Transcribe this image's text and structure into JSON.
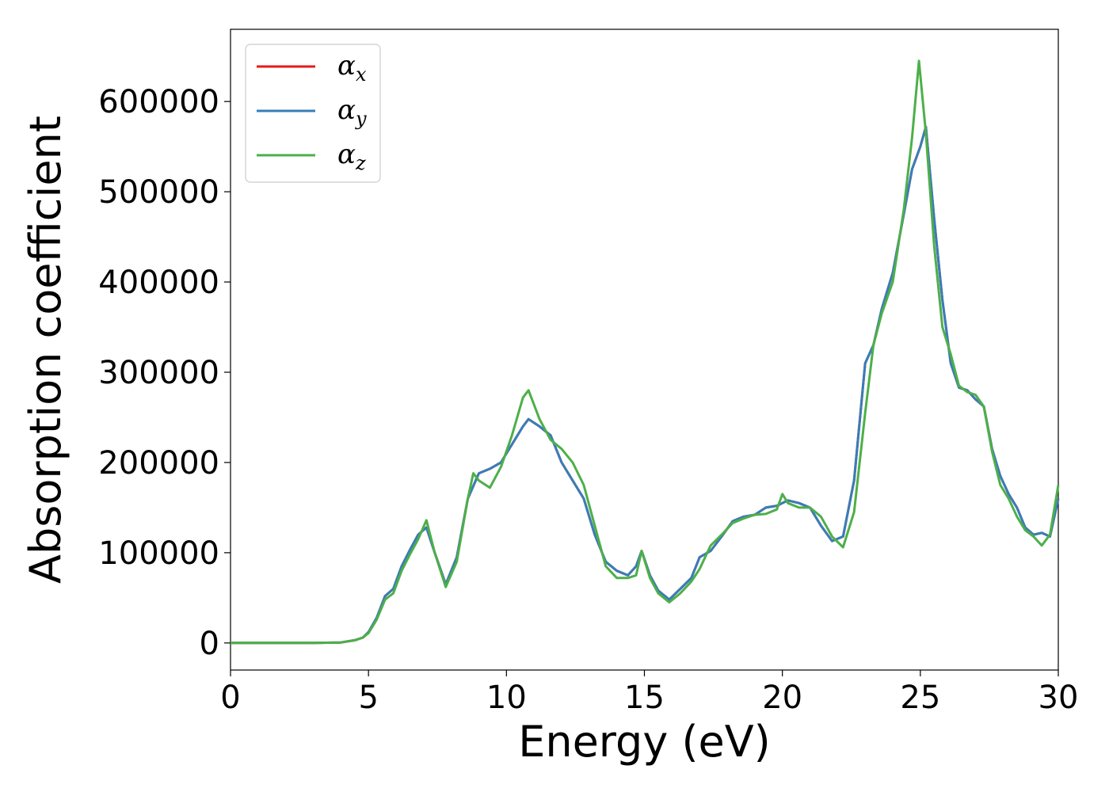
{
  "chart_data": {
    "type": "line",
    "title": "",
    "xlabel": "Energy (eV)",
    "ylabel": "Absorption coefficient",
    "xlim": [
      0,
      30
    ],
    "ylim": [
      -30000,
      680000
    ],
    "xticks": [
      0,
      5,
      10,
      15,
      20,
      25,
      30
    ],
    "yticks": [
      0,
      100000,
      200000,
      300000,
      400000,
      500000,
      600000
    ],
    "xtick_labels": [
      "0",
      "5",
      "10",
      "15",
      "20",
      "25",
      "30"
    ],
    "ytick_labels": [
      "0",
      "100000",
      "200000",
      "300000",
      "400000",
      "500000",
      "600000"
    ],
    "grid": false,
    "legend": "top-left",
    "series": [
      {
        "name": "αx",
        "legend_base": "α",
        "legend_sub": "x",
        "color": "#e41a1c",
        "x": [
          0,
          3,
          4,
          4.5,
          4.8,
          5,
          5.3,
          5.6,
          5.9,
          6.2,
          6.5,
          6.8,
          7.1,
          7.4,
          7.8,
          8.2,
          8.6,
          9.0,
          9.4,
          9.8,
          10.2,
          10.6,
          10.8,
          11.2,
          11.6,
          12.0,
          12.4,
          12.8,
          13.2,
          13.6,
          14.0,
          14.4,
          14.7,
          14.9,
          15.2,
          15.5,
          15.9,
          16.3,
          16.7,
          17.0,
          17.4,
          17.8,
          18.2,
          18.6,
          19.0,
          19.4,
          19.8,
          20.2,
          20.6,
          21.0,
          21.4,
          21.8,
          22.2,
          22.6,
          23.0,
          23.3,
          23.6,
          24.0,
          24.4,
          24.7,
          25.0,
          25.2,
          25.5,
          25.8,
          26.1,
          26.4,
          26.7,
          27.0,
          27.3,
          27.6,
          27.9,
          28.2,
          28.5,
          28.8,
          29.1,
          29.4,
          29.7,
          30.0
        ],
        "values": [
          0,
          0,
          500,
          3000,
          6000,
          12000,
          28000,
          52000,
          60000,
          85000,
          103000,
          120000,
          128000,
          100000,
          65000,
          95000,
          160000,
          188000,
          193000,
          200000,
          220000,
          240000,
          248000,
          240000,
          230000,
          200000,
          180000,
          160000,
          120000,
          90000,
          80000,
          75000,
          85000,
          102000,
          75000,
          58000,
          48000,
          60000,
          72000,
          95000,
          102000,
          118000,
          135000,
          140000,
          142000,
          150000,
          152000,
          158000,
          155000,
          150000,
          130000,
          113000,
          118000,
          180000,
          310000,
          330000,
          370000,
          410000,
          475000,
          525000,
          550000,
          572000,
          470000,
          380000,
          310000,
          283000,
          280000,
          270000,
          262000,
          215000,
          185000,
          165000,
          150000,
          128000,
          120000,
          122000,
          118000,
          160000
        ]
      },
      {
        "name": "αy",
        "legend_base": "α",
        "legend_sub": "y",
        "color": "#377eb8",
        "x": [
          0,
          3,
          4,
          4.5,
          4.8,
          5,
          5.3,
          5.6,
          5.9,
          6.2,
          6.5,
          6.8,
          7.1,
          7.4,
          7.8,
          8.2,
          8.6,
          9.0,
          9.4,
          9.8,
          10.2,
          10.6,
          10.8,
          11.2,
          11.6,
          12.0,
          12.4,
          12.8,
          13.2,
          13.6,
          14.0,
          14.4,
          14.7,
          14.9,
          15.2,
          15.5,
          15.9,
          16.3,
          16.7,
          17.0,
          17.4,
          17.8,
          18.2,
          18.6,
          19.0,
          19.4,
          19.8,
          20.2,
          20.6,
          21.0,
          21.4,
          21.8,
          22.2,
          22.6,
          23.0,
          23.3,
          23.6,
          24.0,
          24.4,
          24.7,
          25.0,
          25.2,
          25.5,
          25.8,
          26.1,
          26.4,
          26.7,
          27.0,
          27.3,
          27.6,
          27.9,
          28.2,
          28.5,
          28.8,
          29.1,
          29.4,
          29.7,
          30.0
        ],
        "values": [
          0,
          0,
          500,
          3000,
          6000,
          12000,
          28000,
          52000,
          60000,
          85000,
          103000,
          120000,
          128000,
          100000,
          65000,
          95000,
          160000,
          188000,
          193000,
          200000,
          220000,
          240000,
          248000,
          240000,
          230000,
          200000,
          180000,
          160000,
          120000,
          90000,
          80000,
          75000,
          85000,
          102000,
          75000,
          58000,
          48000,
          60000,
          72000,
          95000,
          102000,
          118000,
          135000,
          140000,
          142000,
          150000,
          152000,
          158000,
          155000,
          150000,
          130000,
          113000,
          118000,
          180000,
          310000,
          330000,
          370000,
          410000,
          475000,
          525000,
          550000,
          572000,
          470000,
          380000,
          310000,
          283000,
          280000,
          270000,
          262000,
          215000,
          185000,
          165000,
          150000,
          128000,
          120000,
          122000,
          118000,
          160000
        ]
      },
      {
        "name": "αz",
        "legend_base": "α",
        "legend_sub": "z",
        "color": "#4daf4a",
        "x": [
          0,
          3,
          4,
          4.5,
          4.8,
          5,
          5.3,
          5.6,
          5.9,
          6.2,
          6.5,
          6.8,
          7.1,
          7.4,
          7.8,
          8.2,
          8.6,
          8.8,
          9.0,
          9.4,
          9.8,
          10.2,
          10.6,
          10.8,
          11.2,
          11.6,
          12.0,
          12.4,
          12.8,
          13.2,
          13.6,
          14.0,
          14.4,
          14.7,
          14.9,
          15.2,
          15.5,
          15.9,
          16.3,
          16.7,
          17.0,
          17.4,
          17.8,
          18.2,
          18.6,
          19.0,
          19.4,
          19.8,
          20.0,
          20.2,
          20.6,
          21.0,
          21.4,
          21.8,
          22.2,
          22.6,
          23.0,
          23.3,
          23.6,
          24.0,
          24.4,
          24.7,
          24.95,
          25.2,
          25.5,
          25.8,
          26.1,
          26.4,
          26.7,
          27.0,
          27.3,
          27.6,
          27.9,
          28.2,
          28.5,
          28.8,
          29.1,
          29.4,
          29.7,
          30.0
        ],
        "values": [
          0,
          0,
          500,
          3000,
          6000,
          11000,
          26000,
          48000,
          55000,
          80000,
          98000,
          115000,
          136000,
          100000,
          62000,
          90000,
          160000,
          188000,
          180000,
          172000,
          195000,
          230000,
          272000,
          280000,
          248000,
          225000,
          215000,
          200000,
          175000,
          130000,
          85000,
          72000,
          72000,
          75000,
          102000,
          72000,
          55000,
          45000,
          55000,
          68000,
          82000,
          108000,
          120000,
          133000,
          138000,
          142000,
          143000,
          148000,
          165000,
          155000,
          150000,
          150000,
          140000,
          118000,
          106000,
          145000,
          255000,
          330000,
          365000,
          400000,
          480000,
          560000,
          645000,
          565000,
          440000,
          350000,
          320000,
          285000,
          278000,
          275000,
          262000,
          212000,
          175000,
          160000,
          140000,
          125000,
          118000,
          108000,
          120000,
          175000
        ]
      }
    ]
  }
}
